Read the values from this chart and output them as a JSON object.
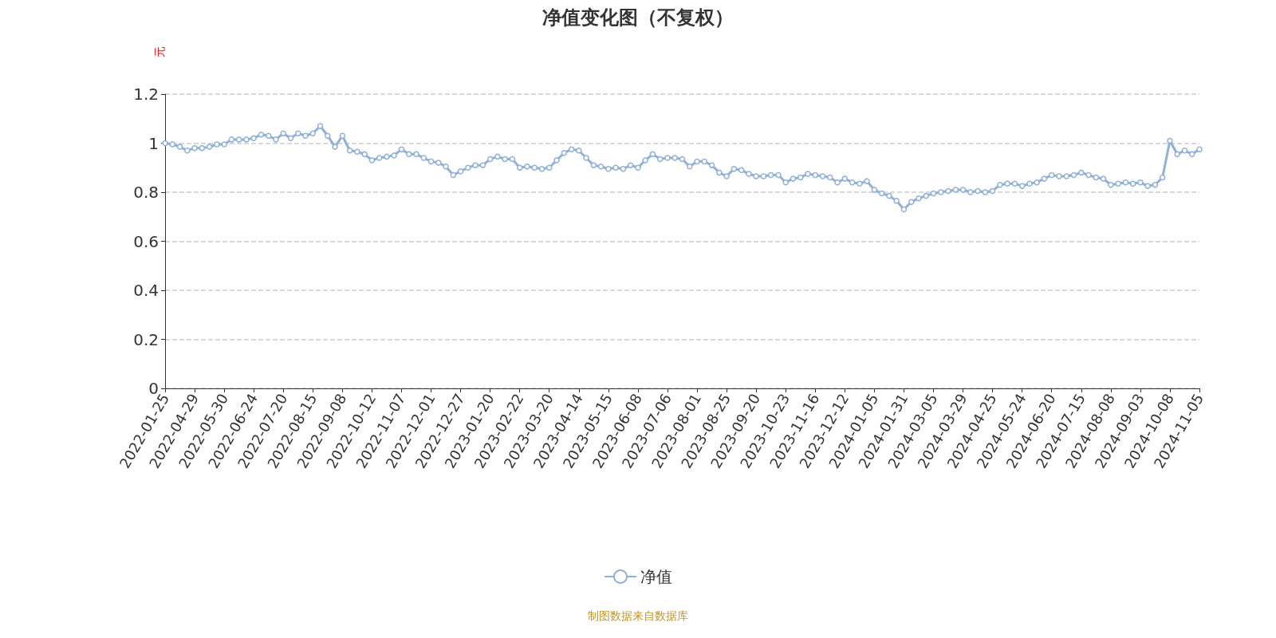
{
  "chart_data": {
    "type": "line",
    "title": "净值变化图（不复权）",
    "ylabel": "元",
    "annotations": [
      "制图数据来自数据库"
    ],
    "categories": [
      "2022-01-25",
      null,
      null,
      null,
      "2022-04-29",
      null,
      null,
      null,
      "2022-05-30",
      null,
      null,
      null,
      "2022-06-24",
      null,
      null,
      null,
      "2022-07-20",
      null,
      null,
      null,
      "2022-08-15",
      null,
      null,
      null,
      "2022-09-08",
      null,
      null,
      null,
      "2022-10-12",
      null,
      null,
      null,
      "2022-11-07",
      null,
      null,
      null,
      "2022-12-01",
      null,
      null,
      null,
      "2022-12-27",
      null,
      null,
      null,
      "2023-01-20",
      null,
      null,
      null,
      "2023-02-22",
      null,
      null,
      null,
      "2023-03-20",
      null,
      null,
      null,
      "2023-04-14",
      null,
      null,
      null,
      "2023-05-15",
      null,
      null,
      null,
      "2023-06-08",
      null,
      null,
      null,
      "2023-07-06",
      null,
      null,
      null,
      "2023-08-01",
      null,
      null,
      null,
      "2023-08-25",
      null,
      null,
      null,
      "2023-09-20",
      null,
      null,
      null,
      "2023-10-23",
      null,
      null,
      null,
      "2023-11-16",
      null,
      null,
      null,
      "2023-12-12",
      null,
      null,
      null,
      "2024-01-05",
      null,
      null,
      null,
      "2024-01-31",
      null,
      null,
      null,
      "2024-03-05",
      null,
      null,
      null,
      "2024-03-29",
      null,
      null,
      null,
      "2024-04-25",
      null,
      null,
      null,
      "2024-05-24",
      null,
      null,
      null,
      "2024-06-20",
      null,
      null,
      null,
      "2024-07-15",
      null,
      null,
      null,
      "2024-08-08",
      null,
      null,
      null,
      "2024-09-03",
      null,
      null,
      null,
      "2024-10-08",
      null,
      null,
      null,
      "2024-11-05"
    ],
    "series": [
      {
        "name": "净值",
        "color": "#8fb0dd",
        "values": [
          1.0,
          0.995,
          0.985,
          0.97,
          0.98,
          0.98,
          0.985,
          0.995,
          0.995,
          1.015,
          1.015,
          1.015,
          1.02,
          1.035,
          1.03,
          1.015,
          1.04,
          1.02,
          1.04,
          1.03,
          1.04,
          1.07,
          1.03,
          0.985,
          1.03,
          0.97,
          0.965,
          0.955,
          0.93,
          0.94,
          0.945,
          0.95,
          0.975,
          0.955,
          0.955,
          0.94,
          0.925,
          0.92,
          0.905,
          0.87,
          0.885,
          0.9,
          0.91,
          0.91,
          0.935,
          0.945,
          0.935,
          0.935,
          0.9,
          0.905,
          0.9,
          0.895,
          0.9,
          0.93,
          0.96,
          0.975,
          0.97,
          0.94,
          0.91,
          0.905,
          0.895,
          0.9,
          0.895,
          0.91,
          0.9,
          0.93,
          0.955,
          0.935,
          0.94,
          0.94,
          0.935,
          0.905,
          0.925,
          0.925,
          0.91,
          0.88,
          0.865,
          0.895,
          0.89,
          0.875,
          0.865,
          0.865,
          0.87,
          0.87,
          0.84,
          0.855,
          0.86,
          0.875,
          0.87,
          0.865,
          0.86,
          0.84,
          0.855,
          0.84,
          0.835,
          0.845,
          0.81,
          0.795,
          0.785,
          0.765,
          0.73,
          0.76,
          0.775,
          0.785,
          0.795,
          0.8,
          0.805,
          0.81,
          0.81,
          0.8,
          0.805,
          0.8,
          0.805,
          0.83,
          0.835,
          0.835,
          0.825,
          0.835,
          0.84,
          0.855,
          0.87,
          0.865,
          0.865,
          0.87,
          0.88,
          0.87,
          0.86,
          0.855,
          0.83,
          0.835,
          0.84,
          0.835,
          0.84,
          0.825,
          0.83,
          0.86,
          1.01,
          0.955,
          0.97,
          0.955,
          0.975
        ]
      }
    ],
    "ylim": [
      0,
      1.2
    ],
    "yticks": [
      0,
      0.2,
      0.4,
      0.6,
      0.8,
      1,
      1.2
    ],
    "grid": "y",
    "legend": "bottom",
    "marker": "circle",
    "line_style": "solid"
  }
}
